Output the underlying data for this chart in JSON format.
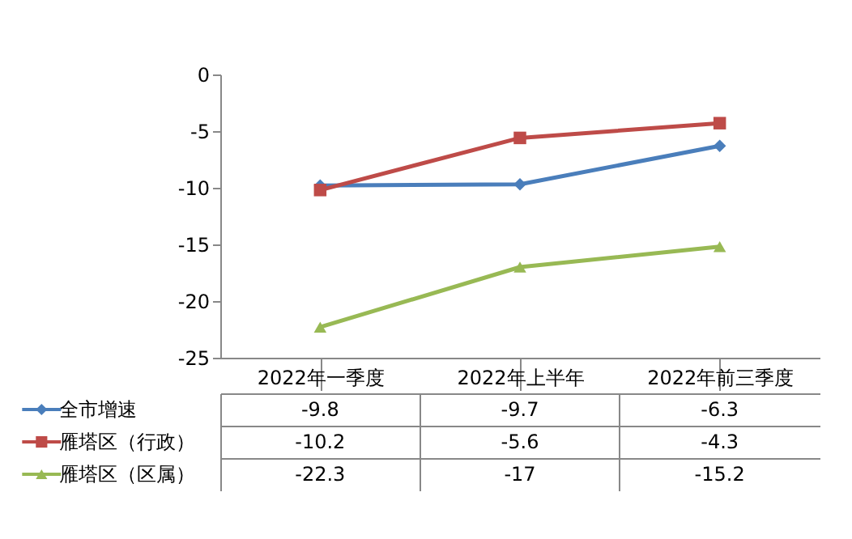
{
  "chart_data": {
    "type": "line",
    "categories": [
      "2022年一季度",
      "2022年上半年",
      "2022年前三季度"
    ],
    "series": [
      {
        "name": "全市增速",
        "color": "#4a7ebb",
        "marker": "diamond",
        "values": [
          -9.8,
          -9.7,
          -6.3
        ]
      },
      {
        "name": "雁塔区（行政）",
        "color": "#be4b48",
        "marker": "square",
        "values": [
          -10.2,
          -5.6,
          -4.3
        ]
      },
      {
        "name": "雁塔区（区属）",
        "color": "#98b954",
        "marker": "triangle",
        "values": [
          -22.3,
          -17,
          -15.2
        ]
      }
    ],
    "ylim": [
      -25,
      0
    ],
    "yticks": [
      -25,
      -20,
      -15,
      -10,
      -5,
      0
    ],
    "grid": false,
    "data_labels": true,
    "legend": "bottom left",
    "line_style": "solid"
  }
}
